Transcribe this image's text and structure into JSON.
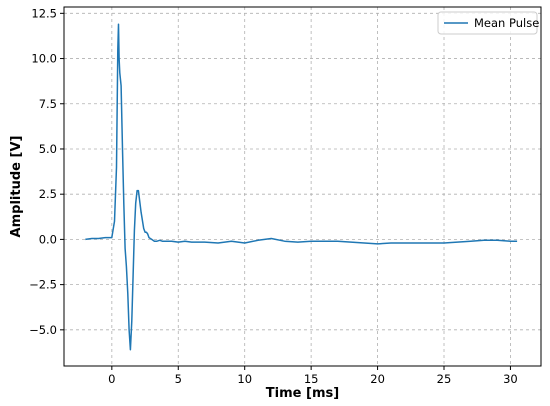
{
  "chart_data": {
    "type": "line",
    "title": "",
    "xlabel": "Time [ms]",
    "ylabel": "Amplitude [V]",
    "xlim": [
      -3.6,
      32.3
    ],
    "ylim": [
      -7.0,
      12.85
    ],
    "xticks": [
      0,
      5,
      10,
      15,
      20,
      25,
      30
    ],
    "yticks": [
      -5.0,
      -2.5,
      0.0,
      2.5,
      5.0,
      7.5,
      10.0,
      12.5
    ],
    "xtick_labels": [
      "0",
      "5",
      "10",
      "15",
      "20",
      "25",
      "30"
    ],
    "ytick_labels": [
      "−5.0",
      "−2.5",
      "0.0",
      "2.5",
      "5.0",
      "7.5",
      "10.0",
      "12.5"
    ],
    "grid": true,
    "legend_position": "top-right",
    "series": [
      {
        "name": "Mean Pulse",
        "color": "#1f77b4",
        "x": [
          -2.0,
          -1.5,
          -1.0,
          -0.5,
          0.0,
          0.2,
          0.35,
          0.45,
          0.5,
          0.55,
          0.6,
          0.7,
          0.8,
          0.9,
          1.0,
          1.1,
          1.2,
          1.3,
          1.4,
          1.5,
          1.6,
          1.7,
          1.8,
          1.9,
          2.0,
          2.2,
          2.4,
          2.5,
          2.6,
          2.7,
          2.8,
          3.0,
          3.2,
          3.4,
          3.6,
          3.8,
          4.0,
          4.5,
          5.0,
          5.5,
          6.0,
          7.0,
          8.0,
          9.0,
          10.0,
          11.0,
          12.0,
          13.0,
          14.0,
          15.0,
          16.0,
          17.0,
          18.0,
          19.0,
          20.0,
          21.0,
          22.0,
          23.0,
          24.0,
          25.0,
          26.0,
          27.0,
          28.0,
          29.0,
          30.0,
          30.5
        ],
        "y": [
          0.0,
          0.05,
          0.05,
          0.1,
          0.1,
          1.0,
          4.0,
          10.5,
          11.9,
          10.0,
          9.2,
          8.5,
          5.0,
          2.0,
          -0.5,
          -1.5,
          -3.0,
          -5.0,
          -6.1,
          -4.5,
          -2.0,
          0.5,
          2.0,
          2.7,
          2.7,
          1.5,
          0.6,
          0.4,
          0.4,
          0.3,
          0.1,
          0.0,
          -0.1,
          -0.1,
          -0.05,
          -0.1,
          -0.1,
          -0.1,
          -0.15,
          -0.1,
          -0.15,
          -0.15,
          -0.2,
          -0.1,
          -0.2,
          -0.05,
          0.05,
          -0.1,
          -0.15,
          -0.1,
          -0.1,
          -0.1,
          -0.15,
          -0.2,
          -0.25,
          -0.2,
          -0.2,
          -0.2,
          -0.2,
          -0.2,
          -0.15,
          -0.1,
          -0.05,
          -0.05,
          -0.1,
          -0.1
        ]
      }
    ]
  }
}
